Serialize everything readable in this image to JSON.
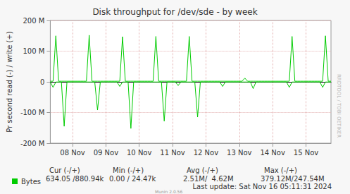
{
  "chart_data": {
    "type": "line",
    "title": "Disk throughput for /dev/sde - by week",
    "y_label": "Pr second read (-) / write (+)",
    "categories": [
      null,
      null,
      null,
      null,
      null,
      null,
      null,
      null,
      "08 Nov",
      null,
      null,
      null,
      null,
      null,
      null,
      null,
      null,
      null,
      null,
      null,
      "09 Nov",
      null,
      null,
      null,
      null,
      null,
      null,
      null,
      null,
      null,
      null,
      null,
      "10 Nov",
      null,
      null,
      null,
      null,
      null,
      null,
      null,
      null,
      null,
      null,
      null,
      "11 Nov",
      null,
      null,
      null,
      null,
      null,
      null,
      null,
      null,
      null,
      null,
      null,
      "12 Nov",
      null,
      null,
      null,
      null,
      null,
      null,
      null,
      null,
      null,
      null,
      null,
      "13 Nov",
      null,
      null,
      null,
      null,
      null,
      null,
      null,
      null,
      null,
      null,
      null,
      "14 Nov",
      null,
      null,
      null,
      null,
      null,
      null,
      null,
      null,
      null,
      null,
      null,
      "15 Nov",
      null,
      null,
      null,
      null,
      null,
      null,
      null,
      null,
      null
    ],
    "series": [
      {
        "name": "Bytes",
        "color": "#00cc00",
        "values": [
          -0.5,
          -18,
          -0.5,
          -0.5,
          -0.5,
          -145,
          -0.5,
          -0.5,
          -0.5,
          -0.5,
          -0.5,
          -0.5,
          -0.5,
          -0.5,
          -0.5,
          -0.5,
          -0.5,
          -92,
          -0.5,
          -0.5,
          -0.5,
          -0.5,
          -0.5,
          -0.5,
          -0.5,
          -15,
          -0.5,
          -0.5,
          -0.5,
          -152,
          -0.5,
          -0.5,
          -0.5,
          -0.5,
          -0.5,
          -0.5,
          -0.5,
          -0.5,
          -0.5,
          -0.5,
          -0.5,
          -128,
          -0.5,
          -0.5,
          -0.5,
          -0.5,
          -12,
          -0.5,
          -0.5,
          -0.5,
          -0.5,
          -0.5,
          -0.5,
          -115,
          -0.5,
          -0.5,
          -0.5,
          -0.5,
          -0.5,
          -0.5,
          -0.5,
          -0.5,
          -15,
          -0.5,
          -0.5,
          -0.5,
          -0.5,
          -0.5,
          -0.5,
          -0.5,
          -0.5,
          -0.5,
          -0.5,
          -22,
          -0.5,
          -0.5,
          -0.5,
          -0.5,
          -0.5,
          -0.5,
          -0.5,
          -0.5,
          -0.5,
          -0.5,
          -0.5,
          -0.5,
          -18,
          -0.5,
          -0.5,
          -0.5,
          -0.5,
          -0.5,
          -0.5,
          -0.5,
          -0.5,
          -0.5,
          -0.5,
          -0.5,
          -18,
          -0.5,
          -0.5,
          -0.5
        ]
      },
      {
        "name": "Bytes",
        "color": "#00cc00",
        "values": [
          2,
          2,
          150,
          2,
          2,
          2,
          2,
          2,
          2,
          2,
          2,
          2,
          2,
          2,
          152,
          2,
          2,
          2,
          2,
          2,
          2,
          2,
          2,
          2,
          2,
          2,
          147,
          2,
          2,
          2,
          2,
          2,
          2,
          2,
          2,
          2,
          2,
          2,
          148,
          2,
          2,
          2,
          2,
          2,
          2,
          2,
          2,
          2,
          2,
          2,
          148,
          2,
          2,
          2,
          2,
          2,
          2,
          2,
          2,
          2,
          2,
          2,
          2,
          2,
          2,
          2,
          2,
          2,
          2,
          2,
          12,
          2,
          2,
          2,
          2,
          2,
          2,
          2,
          2,
          2,
          2,
          2,
          2,
          2,
          2,
          2,
          2,
          148,
          2,
          2,
          2,
          2,
          2,
          2,
          2,
          2,
          2,
          2,
          2,
          150,
          2,
          2
        ]
      }
    ],
    "ylim": [
      -200,
      200
    ],
    "yticks": [
      {
        "value": -200,
        "label": "-200 M"
      },
      {
        "value": -100,
        "label": "-100 M"
      },
      0,
      {
        "value": 100,
        "label": "100 M"
      },
      {
        "value": 200,
        "label": "200 M"
      }
    ],
    "grid": true,
    "legend": "bottom",
    "summary": {
      "headers": [
        "Cur (-/+)",
        "Min (-/+)",
        "Avg (-/+)",
        "Max (-/+)"
      ],
      "values": [
        "634.05 /880.94k",
        "0.00 / 24.47k",
        "2.51M/  4.62M",
        "379.12M/247.54M"
      ]
    },
    "annotations": {
      "last_update": "Last update: Sat Nov 16 05:11:31 2024",
      "version": "Munin 2.0.56",
      "side_text": "RRDTOOL / TOBI OETIKER"
    }
  }
}
